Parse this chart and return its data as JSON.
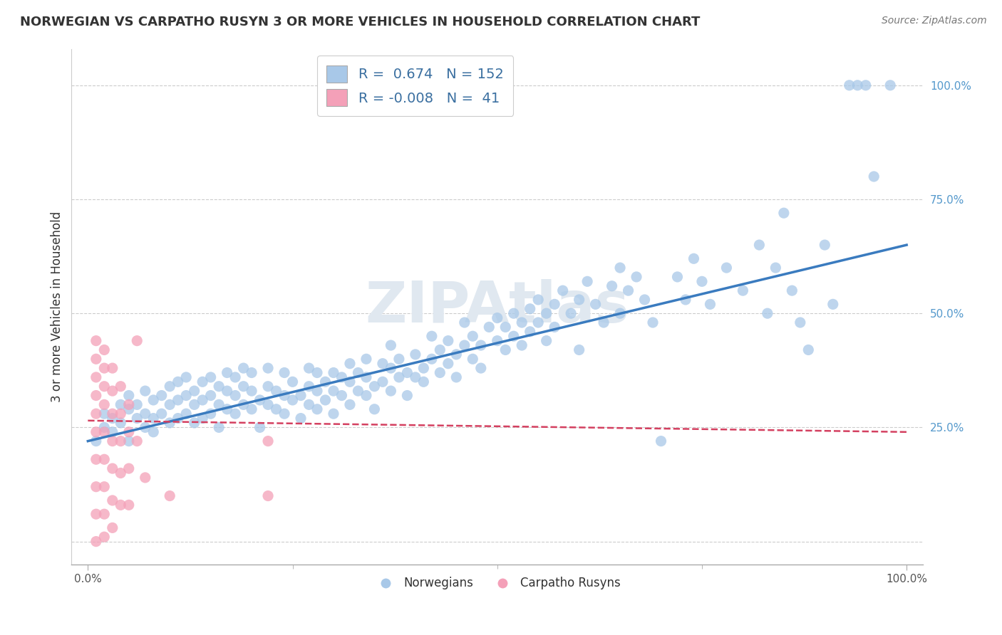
{
  "title": "NORWEGIAN VS CARPATHO RUSYN 3 OR MORE VEHICLES IN HOUSEHOLD CORRELATION CHART",
  "source": "Source: ZipAtlas.com",
  "ylabel": "3 or more Vehicles in Household",
  "legend_label1": "Norwegians",
  "legend_label2": "Carpatho Rusyns",
  "r1": "0.674",
  "n1": "152",
  "r2": "-0.008",
  "n2": "41",
  "blue_color": "#a8c8e8",
  "pink_color": "#f4a0b8",
  "blue_line_color": "#3a7bbf",
  "pink_line_color": "#d44060",
  "watermark_color": "#e0e8f0",
  "blue_scatter": [
    [
      0.01,
      0.22
    ],
    [
      0.02,
      0.25
    ],
    [
      0.02,
      0.28
    ],
    [
      0.03,
      0.24
    ],
    [
      0.03,
      0.27
    ],
    [
      0.04,
      0.26
    ],
    [
      0.04,
      0.3
    ],
    [
      0.05,
      0.22
    ],
    [
      0.05,
      0.29
    ],
    [
      0.05,
      0.32
    ],
    [
      0.06,
      0.27
    ],
    [
      0.06,
      0.3
    ],
    [
      0.07,
      0.25
    ],
    [
      0.07,
      0.28
    ],
    [
      0.07,
      0.33
    ],
    [
      0.08,
      0.24
    ],
    [
      0.08,
      0.27
    ],
    [
      0.08,
      0.31
    ],
    [
      0.09,
      0.28
    ],
    [
      0.09,
      0.32
    ],
    [
      0.1,
      0.26
    ],
    [
      0.1,
      0.3
    ],
    [
      0.1,
      0.34
    ],
    [
      0.11,
      0.27
    ],
    [
      0.11,
      0.31
    ],
    [
      0.11,
      0.35
    ],
    [
      0.12,
      0.28
    ],
    [
      0.12,
      0.32
    ],
    [
      0.12,
      0.36
    ],
    [
      0.13,
      0.26
    ],
    [
      0.13,
      0.3
    ],
    [
      0.13,
      0.33
    ],
    [
      0.14,
      0.27
    ],
    [
      0.14,
      0.31
    ],
    [
      0.14,
      0.35
    ],
    [
      0.15,
      0.28
    ],
    [
      0.15,
      0.32
    ],
    [
      0.15,
      0.36
    ],
    [
      0.16,
      0.25
    ],
    [
      0.16,
      0.3
    ],
    [
      0.16,
      0.34
    ],
    [
      0.17,
      0.29
    ],
    [
      0.17,
      0.33
    ],
    [
      0.17,
      0.37
    ],
    [
      0.18,
      0.28
    ],
    [
      0.18,
      0.32
    ],
    [
      0.18,
      0.36
    ],
    [
      0.19,
      0.3
    ],
    [
      0.19,
      0.34
    ],
    [
      0.19,
      0.38
    ],
    [
      0.2,
      0.29
    ],
    [
      0.2,
      0.33
    ],
    [
      0.2,
      0.37
    ],
    [
      0.21,
      0.25
    ],
    [
      0.21,
      0.31
    ],
    [
      0.22,
      0.3
    ],
    [
      0.22,
      0.34
    ],
    [
      0.22,
      0.38
    ],
    [
      0.23,
      0.29
    ],
    [
      0.23,
      0.33
    ],
    [
      0.24,
      0.28
    ],
    [
      0.24,
      0.32
    ],
    [
      0.24,
      0.37
    ],
    [
      0.25,
      0.31
    ],
    [
      0.25,
      0.35
    ],
    [
      0.26,
      0.27
    ],
    [
      0.26,
      0.32
    ],
    [
      0.27,
      0.3
    ],
    [
      0.27,
      0.34
    ],
    [
      0.27,
      0.38
    ],
    [
      0.28,
      0.29
    ],
    [
      0.28,
      0.33
    ],
    [
      0.28,
      0.37
    ],
    [
      0.29,
      0.31
    ],
    [
      0.29,
      0.35
    ],
    [
      0.3,
      0.33
    ],
    [
      0.3,
      0.28
    ],
    [
      0.3,
      0.37
    ],
    [
      0.31,
      0.32
    ],
    [
      0.31,
      0.36
    ],
    [
      0.32,
      0.3
    ],
    [
      0.32,
      0.35
    ],
    [
      0.32,
      0.39
    ],
    [
      0.33,
      0.33
    ],
    [
      0.33,
      0.37
    ],
    [
      0.34,
      0.32
    ],
    [
      0.34,
      0.36
    ],
    [
      0.34,
      0.4
    ],
    [
      0.35,
      0.29
    ],
    [
      0.35,
      0.34
    ],
    [
      0.36,
      0.35
    ],
    [
      0.36,
      0.39
    ],
    [
      0.37,
      0.33
    ],
    [
      0.37,
      0.38
    ],
    [
      0.37,
      0.43
    ],
    [
      0.38,
      0.36
    ],
    [
      0.38,
      0.4
    ],
    [
      0.39,
      0.32
    ],
    [
      0.39,
      0.37
    ],
    [
      0.4,
      0.36
    ],
    [
      0.4,
      0.41
    ],
    [
      0.41,
      0.38
    ],
    [
      0.41,
      0.35
    ],
    [
      0.42,
      0.4
    ],
    [
      0.42,
      0.45
    ],
    [
      0.43,
      0.37
    ],
    [
      0.43,
      0.42
    ],
    [
      0.44,
      0.39
    ],
    [
      0.44,
      0.44
    ],
    [
      0.45,
      0.41
    ],
    [
      0.45,
      0.36
    ],
    [
      0.46,
      0.43
    ],
    [
      0.46,
      0.48
    ],
    [
      0.47,
      0.4
    ],
    [
      0.47,
      0.45
    ],
    [
      0.48,
      0.38
    ],
    [
      0.48,
      0.43
    ],
    [
      0.49,
      0.47
    ],
    [
      0.5,
      0.44
    ],
    [
      0.5,
      0.49
    ],
    [
      0.51,
      0.42
    ],
    [
      0.51,
      0.47
    ],
    [
      0.52,
      0.5
    ],
    [
      0.52,
      0.45
    ],
    [
      0.53,
      0.43
    ],
    [
      0.53,
      0.48
    ],
    [
      0.54,
      0.46
    ],
    [
      0.54,
      0.51
    ],
    [
      0.55,
      0.48
    ],
    [
      0.55,
      0.53
    ],
    [
      0.56,
      0.44
    ],
    [
      0.56,
      0.5
    ],
    [
      0.57,
      0.52
    ],
    [
      0.57,
      0.47
    ],
    [
      0.58,
      0.55
    ],
    [
      0.59,
      0.5
    ],
    [
      0.6,
      0.53
    ],
    [
      0.6,
      0.42
    ],
    [
      0.61,
      0.57
    ],
    [
      0.62,
      0.52
    ],
    [
      0.63,
      0.48
    ],
    [
      0.64,
      0.56
    ],
    [
      0.65,
      0.6
    ],
    [
      0.65,
      0.5
    ],
    [
      0.66,
      0.55
    ],
    [
      0.67,
      0.58
    ],
    [
      0.68,
      0.53
    ],
    [
      0.69,
      0.48
    ],
    [
      0.7,
      0.22
    ],
    [
      0.72,
      0.58
    ],
    [
      0.73,
      0.53
    ],
    [
      0.74,
      0.62
    ],
    [
      0.75,
      0.57
    ],
    [
      0.76,
      0.52
    ],
    [
      0.78,
      0.6
    ],
    [
      0.8,
      0.55
    ],
    [
      0.82,
      0.65
    ],
    [
      0.83,
      0.5
    ],
    [
      0.84,
      0.6
    ],
    [
      0.85,
      0.72
    ],
    [
      0.86,
      0.55
    ],
    [
      0.87,
      0.48
    ],
    [
      0.88,
      0.42
    ],
    [
      0.9,
      0.65
    ],
    [
      0.91,
      0.52
    ],
    [
      0.93,
      1.0
    ],
    [
      0.94,
      1.0
    ],
    [
      0.95,
      1.0
    ],
    [
      0.96,
      0.8
    ],
    [
      0.98,
      1.0
    ]
  ],
  "pink_scatter": [
    [
      0.01,
      0.44
    ],
    [
      0.01,
      0.4
    ],
    [
      0.01,
      0.36
    ],
    [
      0.01,
      0.32
    ],
    [
      0.01,
      0.28
    ],
    [
      0.01,
      0.24
    ],
    [
      0.01,
      0.18
    ],
    [
      0.01,
      0.12
    ],
    [
      0.01,
      0.06
    ],
    [
      0.01,
      0.0
    ],
    [
      0.02,
      0.42
    ],
    [
      0.02,
      0.38
    ],
    [
      0.02,
      0.34
    ],
    [
      0.02,
      0.3
    ],
    [
      0.02,
      0.24
    ],
    [
      0.02,
      0.18
    ],
    [
      0.02,
      0.12
    ],
    [
      0.02,
      0.06
    ],
    [
      0.02,
      0.01
    ],
    [
      0.03,
      0.38
    ],
    [
      0.03,
      0.33
    ],
    [
      0.03,
      0.28
    ],
    [
      0.03,
      0.22
    ],
    [
      0.03,
      0.16
    ],
    [
      0.03,
      0.09
    ],
    [
      0.03,
      0.03
    ],
    [
      0.04,
      0.34
    ],
    [
      0.04,
      0.28
    ],
    [
      0.04,
      0.22
    ],
    [
      0.04,
      0.15
    ],
    [
      0.04,
      0.08
    ],
    [
      0.05,
      0.3
    ],
    [
      0.05,
      0.24
    ],
    [
      0.05,
      0.16
    ],
    [
      0.05,
      0.08
    ],
    [
      0.06,
      0.44
    ],
    [
      0.06,
      0.22
    ],
    [
      0.07,
      0.14
    ],
    [
      0.1,
      0.1
    ],
    [
      0.22,
      0.22
    ],
    [
      0.22,
      0.1
    ]
  ],
  "blue_line": [
    0.0,
    0.22,
    1.0,
    0.65
  ],
  "pink_line": [
    0.0,
    0.265,
    1.0,
    0.24
  ],
  "xlim": [
    -0.02,
    1.02
  ],
  "ylim": [
    -0.05,
    1.08
  ],
  "yticks": [
    0.0,
    0.25,
    0.5,
    0.75,
    1.0
  ],
  "ytick_labels": [
    "",
    "25.0%",
    "50.0%",
    "75.0%",
    "100.0%"
  ],
  "xtick_labels": [
    "0.0%",
    "100.0%"
  ],
  "title_fontsize": 13,
  "source_fontsize": 10,
  "ylabel_fontsize": 12,
  "tick_fontsize": 11
}
